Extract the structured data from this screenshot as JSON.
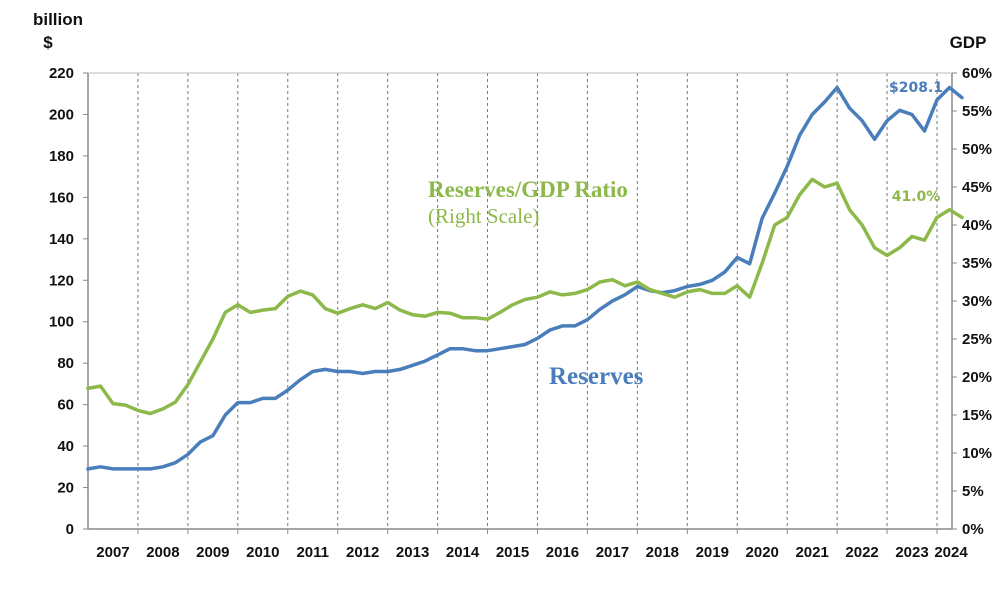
{
  "chart_data": {
    "type": "line",
    "title": "",
    "left_axis": {
      "unit_line1": "billion",
      "unit_line2": "$",
      "ylim": [
        0,
        220
      ],
      "ticks": [
        0,
        20,
        40,
        60,
        80,
        100,
        120,
        140,
        160,
        180,
        200,
        220
      ]
    },
    "right_axis": {
      "unit": "GDP",
      "ylim": [
        0,
        60
      ],
      "ticks": [
        "0%",
        "5%",
        "10%",
        "15%",
        "20%",
        "25%",
        "30%",
        "35%",
        "40%",
        "45%",
        "50%",
        "55%",
        "60%"
      ]
    },
    "x_tick_labels": [
      "2007",
      "2008",
      "2009",
      "2010",
      "2011",
      "2012",
      "2013",
      "2014",
      "2015",
      "2016",
      "2017",
      "2018",
      "2019",
      "2020",
      "2021",
      "2022",
      "2023",
      "2024"
    ],
    "xlim": [
      2007.0,
      2024.3
    ],
    "grid": "vertical-dashed-at-year-boundaries",
    "series": [
      {
        "name": "Reserves",
        "axis": "left",
        "color": "#4a7ebb",
        "x_start": 2007.0,
        "step": 0.25,
        "values": [
          29,
          30,
          29,
          29,
          29,
          29,
          30,
          32,
          36,
          42,
          45,
          55,
          61,
          61,
          63,
          63,
          67,
          72,
          76,
          77,
          76,
          76,
          75,
          76,
          76,
          77,
          79,
          81,
          84,
          87,
          87,
          86,
          86,
          87,
          88,
          89,
          92,
          96,
          98,
          98,
          101,
          106,
          110,
          113,
          117,
          115,
          114,
          115,
          117,
          118,
          120,
          124,
          131,
          128,
          150,
          162,
          175,
          190,
          200,
          206,
          213,
          203,
          197,
          188,
          197,
          202,
          200,
          192,
          207,
          213,
          208.1
        ],
        "end_label": "$208.1"
      },
      {
        "name": "Reserves/GDP Ratio",
        "axis": "right",
        "color": "#8db84a",
        "x_start": 2007.0,
        "step": 0.25,
        "values": [
          18.5,
          18.8,
          16.5,
          16.3,
          15.6,
          15.2,
          15.8,
          16.7,
          19,
          22,
          25,
          28.5,
          29.5,
          28.5,
          28.8,
          29,
          30.6,
          31.3,
          30.8,
          29,
          28.4,
          29,
          29.5,
          29,
          29.8,
          28.8,
          28.2,
          28,
          28.5,
          28.4,
          27.8,
          27.8,
          27.6,
          28.5,
          29.5,
          30.2,
          30.5,
          31.2,
          30.8,
          31,
          31.5,
          32.5,
          32.8,
          32,
          32.5,
          31.5,
          31,
          30.5,
          31.2,
          31.5,
          31,
          31,
          32,
          30.5,
          35,
          40,
          41,
          44,
          46,
          45,
          45.5,
          42,
          40,
          37,
          36,
          37,
          38.5,
          38,
          41,
          42,
          41.0
        ],
        "end_label": "41.0%"
      }
    ],
    "annotations": {
      "ratio_title": "Reserves/GDP Ratio",
      "ratio_subtitle": "(Right Scale)",
      "reserves_title": "Reserves"
    }
  }
}
